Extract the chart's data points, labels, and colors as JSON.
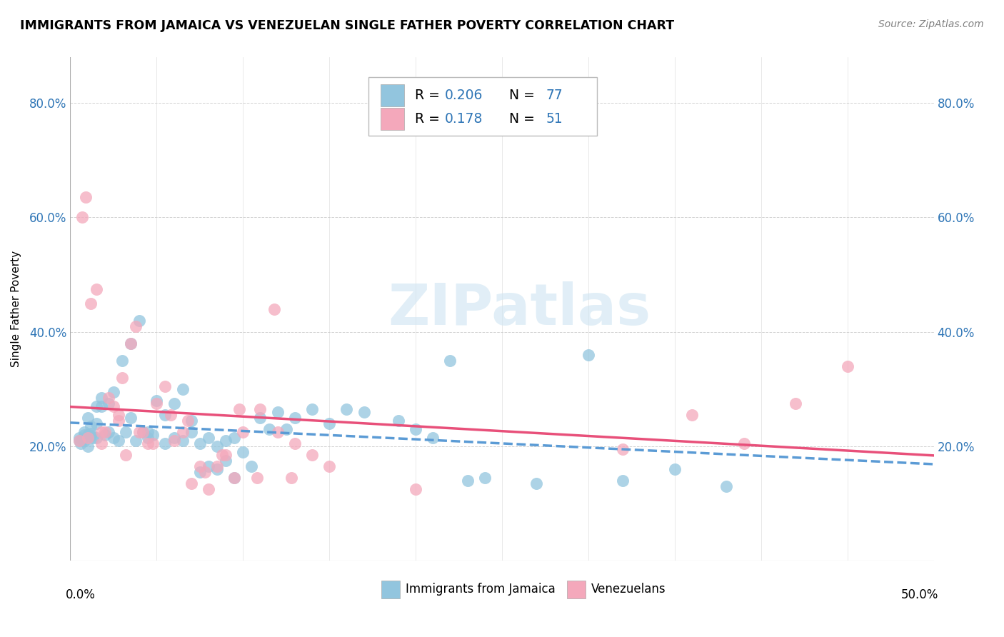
{
  "title": "IMMIGRANTS FROM JAMAICA VS VENEZUELAN SINGLE FATHER POVERTY CORRELATION CHART",
  "source": "Source: ZipAtlas.com",
  "ylabel": "Single Father Poverty",
  "yticks": [
    "20.0%",
    "40.0%",
    "60.0%",
    "80.0%"
  ],
  "ytick_vals": [
    0.2,
    0.4,
    0.6,
    0.8
  ],
  "xlim": [
    0.0,
    0.5
  ],
  "ylim": [
    0.0,
    0.88
  ],
  "color_jamaica": "#92c5de",
  "color_venezuela": "#f4a8bb",
  "color_jamaica_line": "#5b9bd5",
  "color_venezuela_line": "#e8507a",
  "color_num_blue": "#2e75b6",
  "watermark": "ZIPatlas",
  "jamaica_x": [
    0.005,
    0.008,
    0.01,
    0.012,
    0.015,
    0.008,
    0.01,
    0.012,
    0.005,
    0.007,
    0.01,
    0.013,
    0.008,
    0.006,
    0.015,
    0.012,
    0.018,
    0.02,
    0.022,
    0.025,
    0.028,
    0.032,
    0.035,
    0.038,
    0.042,
    0.045,
    0.048,
    0.055,
    0.06,
    0.065,
    0.07,
    0.075,
    0.08,
    0.085,
    0.09,
    0.095,
    0.01,
    0.015,
    0.018,
    0.022,
    0.025,
    0.03,
    0.035,
    0.04,
    0.045,
    0.05,
    0.055,
    0.06,
    0.065,
    0.07,
    0.075,
    0.08,
    0.085,
    0.09,
    0.095,
    0.1,
    0.105,
    0.11,
    0.115,
    0.12,
    0.125,
    0.13,
    0.14,
    0.15,
    0.16,
    0.17,
    0.19,
    0.2,
    0.21,
    0.22,
    0.23,
    0.24,
    0.27,
    0.3,
    0.32,
    0.35,
    0.38
  ],
  "jamaica_y": [
    0.215,
    0.22,
    0.218,
    0.222,
    0.215,
    0.225,
    0.22,
    0.218,
    0.21,
    0.212,
    0.2,
    0.215,
    0.21,
    0.205,
    0.24,
    0.235,
    0.27,
    0.22,
    0.225,
    0.215,
    0.21,
    0.225,
    0.25,
    0.21,
    0.225,
    0.215,
    0.22,
    0.205,
    0.215,
    0.21,
    0.225,
    0.205,
    0.215,
    0.2,
    0.21,
    0.215,
    0.25,
    0.27,
    0.285,
    0.275,
    0.295,
    0.35,
    0.38,
    0.42,
    0.225,
    0.28,
    0.255,
    0.275,
    0.3,
    0.245,
    0.155,
    0.165,
    0.16,
    0.175,
    0.145,
    0.19,
    0.165,
    0.25,
    0.23,
    0.26,
    0.23,
    0.25,
    0.265,
    0.24,
    0.265,
    0.26,
    0.245,
    0.23,
    0.215,
    0.35,
    0.14,
    0.145,
    0.135,
    0.36,
    0.14,
    0.16,
    0.13
  ],
  "venezuela_x": [
    0.005,
    0.007,
    0.009,
    0.012,
    0.015,
    0.018,
    0.02,
    0.025,
    0.028,
    0.03,
    0.035,
    0.038,
    0.042,
    0.045,
    0.05,
    0.055,
    0.06,
    0.065,
    0.07,
    0.075,
    0.08,
    0.085,
    0.09,
    0.095,
    0.1,
    0.11,
    0.12,
    0.13,
    0.14,
    0.15,
    0.01,
    0.018,
    0.022,
    0.028,
    0.032,
    0.04,
    0.048,
    0.058,
    0.068,
    0.078,
    0.088,
    0.098,
    0.108,
    0.118,
    0.128,
    0.2,
    0.32,
    0.36,
    0.39,
    0.42,
    0.45
  ],
  "venezuela_y": [
    0.21,
    0.6,
    0.635,
    0.45,
    0.475,
    0.205,
    0.225,
    0.27,
    0.245,
    0.32,
    0.38,
    0.41,
    0.225,
    0.205,
    0.275,
    0.305,
    0.21,
    0.225,
    0.135,
    0.165,
    0.125,
    0.165,
    0.185,
    0.145,
    0.225,
    0.265,
    0.225,
    0.205,
    0.185,
    0.165,
    0.215,
    0.225,
    0.285,
    0.255,
    0.185,
    0.225,
    0.205,
    0.255,
    0.245,
    0.155,
    0.185,
    0.265,
    0.145,
    0.44,
    0.145,
    0.125,
    0.195,
    0.255,
    0.205,
    0.275,
    0.34
  ]
}
